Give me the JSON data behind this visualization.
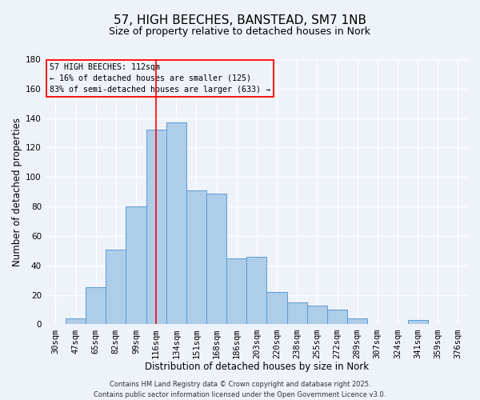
{
  "title": "57, HIGH BEECHES, BANSTEAD, SM7 1NB",
  "subtitle": "Size of property relative to detached houses in Nork",
  "xlabel": "Distribution of detached houses by size in Nork",
  "ylabel": "Number of detached properties",
  "categories": [
    "30sqm",
    "47sqm",
    "65sqm",
    "82sqm",
    "99sqm",
    "116sqm",
    "134sqm",
    "151sqm",
    "168sqm",
    "186sqm",
    "203sqm",
    "220sqm",
    "238sqm",
    "255sqm",
    "272sqm",
    "289sqm",
    "307sqm",
    "324sqm",
    "341sqm",
    "359sqm",
    "376sqm"
  ],
  "values": [
    0,
    4,
    25,
    51,
    80,
    132,
    137,
    91,
    89,
    45,
    46,
    22,
    15,
    13,
    10,
    4,
    0,
    0,
    3,
    0,
    0
  ],
  "bar_color": "#aecde8",
  "bar_edge_color": "#5b9bd5",
  "red_line_index": 5,
  "ylim": [
    0,
    180
  ],
  "yticks": [
    0,
    20,
    40,
    60,
    80,
    100,
    120,
    140,
    160,
    180
  ],
  "annotation_title": "57 HIGH BEECHES: 112sqm",
  "annotation_line1": "← 16% of detached houses are smaller (125)",
  "annotation_line2": "83% of semi-detached houses are larger (633) →",
  "footnote1": "Contains HM Land Registry data © Crown copyright and database right 2025.",
  "footnote2": "Contains public sector information licensed under the Open Government Licence v3.0.",
  "background_color": "#eef2f9",
  "grid_color": "#ffffff",
  "title_fontsize": 11,
  "subtitle_fontsize": 9,
  "axis_label_fontsize": 8.5,
  "tick_fontsize": 7.5,
  "footnote_fontsize": 6
}
